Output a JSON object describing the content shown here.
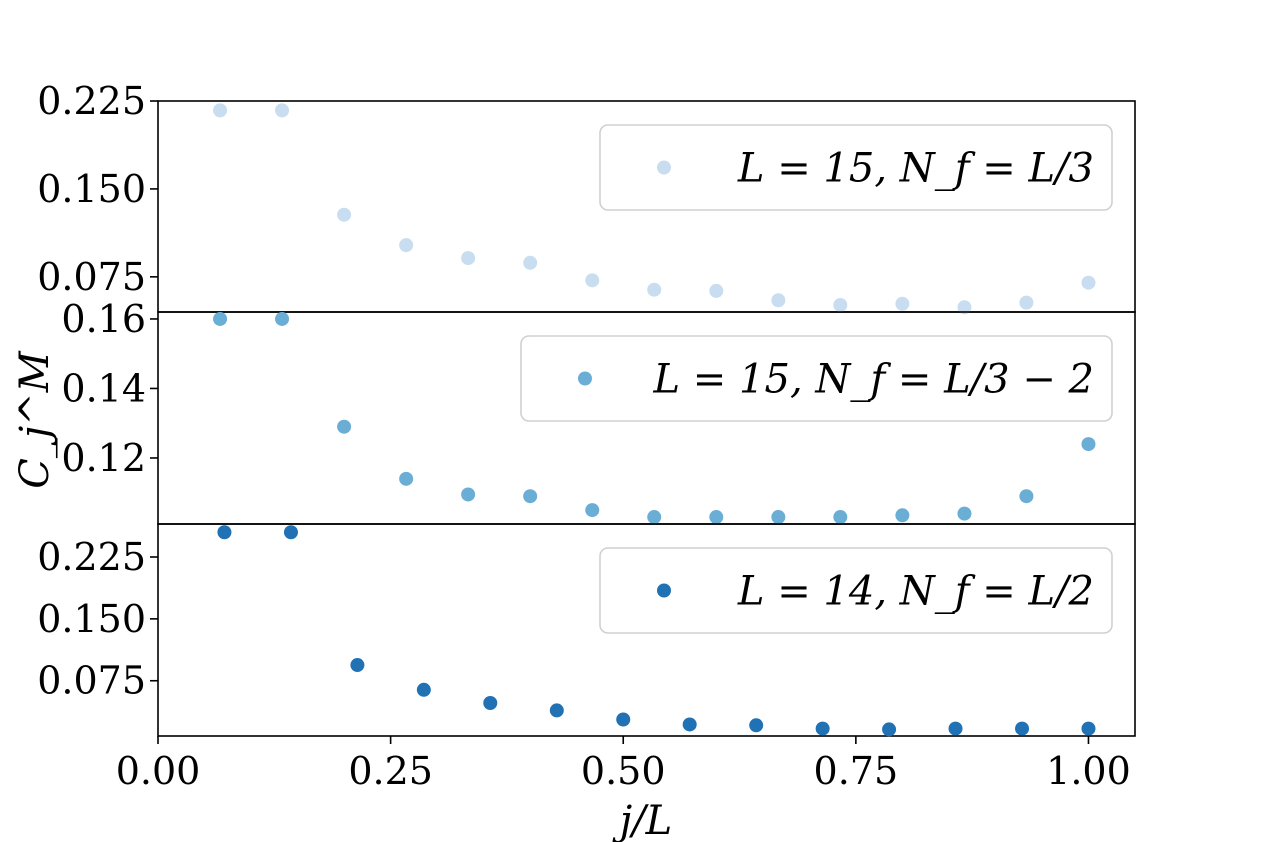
{
  "chart_data": [
    {
      "type": "scatter",
      "x": [
        0.0667,
        0.1333,
        0.2,
        0.2667,
        0.3333,
        0.4,
        0.4667,
        0.5333,
        0.6,
        0.6667,
        0.7333,
        0.8,
        0.8667,
        0.9333,
        1.0
      ],
      "series": [
        {
          "name": "L = 15, N_f = L/3",
          "color": "#c9ddf0",
          "values": [
            0.217,
            0.217,
            0.128,
            0.102,
            0.091,
            0.087,
            0.072,
            0.064,
            0.063,
            0.055,
            0.051,
            0.052,
            0.049,
            0.053,
            0.07
          ]
        }
      ],
      "ylim": [
        0.045,
        0.225
      ],
      "yticks": [
        "0.075",
        "0.150",
        "0.225"
      ],
      "ytick_values": [
        0.075,
        0.15,
        0.225
      ],
      "legend": "upper right"
    },
    {
      "type": "scatter",
      "x": [
        0.0667,
        0.1333,
        0.2,
        0.2667,
        0.3333,
        0.4,
        0.4667,
        0.5333,
        0.6,
        0.6667,
        0.7333,
        0.8,
        0.8667,
        0.9333,
        1.0
      ],
      "series": [
        {
          "name": "L = 15, N_f = L/3 − 2",
          "color": "#6aaed6",
          "values": [
            0.16,
            0.16,
            0.129,
            0.114,
            0.1095,
            0.109,
            0.105,
            0.103,
            0.103,
            0.103,
            0.103,
            0.1035,
            0.104,
            0.109,
            0.124
          ]
        }
      ],
      "ylim": [
        0.101,
        0.162
      ],
      "yticks": [
        "0.12",
        "0.14",
        "0.16"
      ],
      "ytick_values": [
        0.12,
        0.14,
        0.16
      ],
      "ylabel": "C_j^M",
      "legend": "upper right"
    },
    {
      "type": "scatter",
      "x": [
        0.0714,
        0.1429,
        0.2143,
        0.2857,
        0.3571,
        0.4286,
        0.5,
        0.5714,
        0.6429,
        0.7143,
        0.7857,
        0.8571,
        0.9286,
        1.0
      ],
      "series": [
        {
          "name": "L = 14, N_f = L/2",
          "color": "#2171b5",
          "values": [
            0.255,
            0.255,
            0.094,
            0.064,
            0.048,
            0.039,
            0.028,
            0.022,
            0.021,
            0.017,
            0.016,
            0.017,
            0.017,
            0.017
          ]
        }
      ],
      "ylim": [
        0.008,
        0.265
      ],
      "yticks": [
        "0.075",
        "0.150",
        "0.225"
      ],
      "ytick_values": [
        0.075,
        0.15,
        0.225
      ],
      "legend": "upper right"
    }
  ],
  "xaxis": {
    "label": "j/L",
    "xlim": [
      0.0,
      1.05
    ],
    "ticks": [
      "0.00",
      "0.25",
      "0.50",
      "0.75",
      "1.00"
    ],
    "tick_values": [
      0.0,
      0.25,
      0.5,
      0.75,
      1.0
    ]
  }
}
